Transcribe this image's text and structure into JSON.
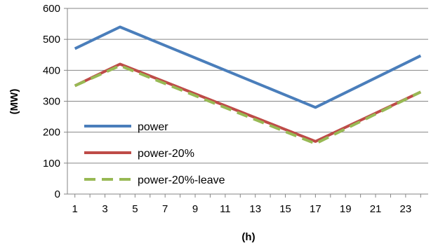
{
  "chart_data": {
    "type": "line",
    "xlabel": "(h)",
    "ylabel": "(MW)",
    "xlim": [
      0.5,
      24.5
    ],
    "ylim": [
      0,
      600
    ],
    "x_ticks": [
      1,
      3,
      5,
      7,
      9,
      11,
      13,
      15,
      17,
      19,
      21,
      23
    ],
    "y_ticks": [
      0,
      100,
      200,
      300,
      400,
      500,
      600
    ],
    "grid": "horizontal",
    "legend_position": "bottom-left",
    "series": [
      {
        "name": "power",
        "color": "#4a7ebb",
        "style": "solid",
        "points": [
          [
            1,
            470
          ],
          [
            4,
            540
          ],
          [
            17,
            280
          ],
          [
            24,
            447
          ]
        ]
      },
      {
        "name": "power-20%",
        "color": "#be4b48",
        "style": "solid",
        "points": [
          [
            1,
            350
          ],
          [
            4,
            420
          ],
          [
            17,
            170
          ],
          [
            24,
            330
          ]
        ]
      },
      {
        "name": "power-20%-leave",
        "color": "#98b954",
        "style": "dashed",
        "points": [
          [
            1,
            350
          ],
          [
            4,
            415
          ],
          [
            17,
            163
          ],
          [
            24,
            330
          ]
        ]
      }
    ]
  }
}
